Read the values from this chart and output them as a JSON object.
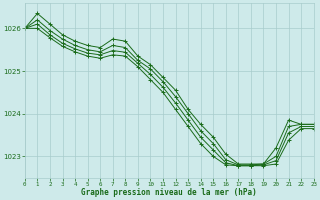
{
  "title": "Graphe pression niveau de la mer (hPa)",
  "bg_color": "#ceeaea",
  "grid_color": "#a8cccc",
  "line_color": "#1a6b1a",
  "xlim": [
    0,
    23
  ],
  "ylim": [
    1022.5,
    1026.6
  ],
  "yticks": [
    1023,
    1024,
    1025,
    1026
  ],
  "xticks": [
    0,
    1,
    2,
    3,
    4,
    5,
    6,
    7,
    8,
    9,
    10,
    11,
    12,
    13,
    14,
    15,
    16,
    17,
    18,
    19,
    20,
    21,
    22,
    23
  ],
  "series": [
    {
      "x": [
        0,
        1,
        2,
        3,
        4,
        5,
        6,
        7,
        8,
        9,
        10,
        11,
        12,
        13,
        14,
        15,
        16,
        17,
        18,
        19,
        20,
        21,
        22,
        23
      ],
      "y": [
        1026.0,
        1026.35,
        1026.1,
        1025.85,
        1025.7,
        1025.6,
        1025.55,
        1025.75,
        1025.7,
        1025.35,
        1025.15,
        1024.85,
        1024.55,
        1024.1,
        1023.75,
        1023.45,
        1023.05,
        1022.82,
        1022.82,
        1022.82,
        1023.2,
        1023.85,
        1023.75,
        1023.75
      ]
    },
    {
      "x": [
        0,
        1,
        2,
        3,
        4,
        5,
        6,
        7,
        8,
        9,
        10,
        11,
        12,
        13,
        14,
        15,
        16,
        17,
        18,
        19,
        20,
        21,
        22,
        23
      ],
      "y": [
        1026.0,
        1026.2,
        1025.95,
        1025.75,
        1025.6,
        1025.5,
        1025.45,
        1025.6,
        1025.55,
        1025.25,
        1025.05,
        1024.75,
        1024.4,
        1024.0,
        1023.6,
        1023.3,
        1022.92,
        1022.8,
        1022.8,
        1022.82,
        1023.0,
        1023.7,
        1023.75,
        1023.75
      ]
    },
    {
      "x": [
        0,
        1,
        2,
        3,
        4,
        5,
        6,
        7,
        8,
        9,
        10,
        11,
        12,
        13,
        14,
        15,
        16,
        17,
        18,
        19,
        20,
        21,
        22,
        23
      ],
      "y": [
        1026.0,
        1026.1,
        1025.85,
        1025.65,
        1025.52,
        1025.42,
        1025.38,
        1025.48,
        1025.44,
        1025.18,
        1024.92,
        1024.62,
        1024.25,
        1023.85,
        1023.45,
        1023.15,
        1022.85,
        1022.78,
        1022.78,
        1022.8,
        1022.9,
        1023.55,
        1023.7,
        1023.7
      ]
    },
    {
      "x": [
        0,
        1,
        2,
        3,
        4,
        5,
        6,
        7,
        8,
        9,
        10,
        11,
        12,
        13,
        14,
        15,
        16,
        17,
        18,
        19,
        20,
        21,
        22,
        23
      ],
      "y": [
        1026.0,
        1026.0,
        1025.78,
        1025.58,
        1025.45,
        1025.35,
        1025.3,
        1025.38,
        1025.35,
        1025.1,
        1024.8,
        1024.5,
        1024.1,
        1023.7,
        1023.3,
        1023.0,
        1022.8,
        1022.78,
        1022.78,
        1022.78,
        1022.82,
        1023.38,
        1023.65,
        1023.65
      ]
    }
  ]
}
